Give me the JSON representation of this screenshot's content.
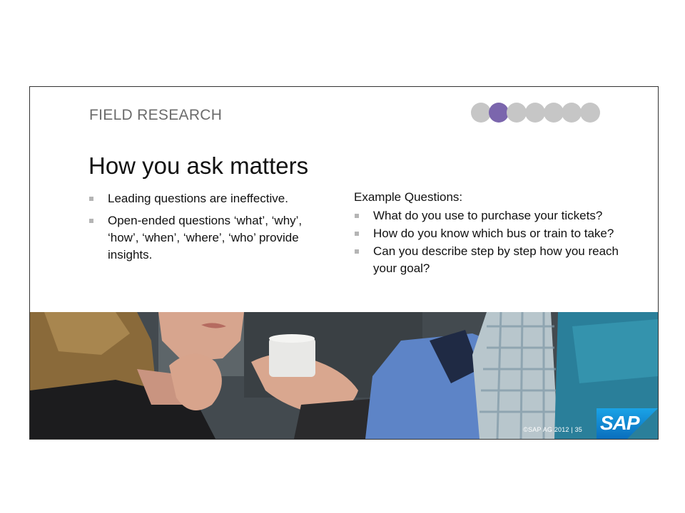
{
  "slide": {
    "section_title": "FIELD RESEARCH",
    "headline": "How you ask matters",
    "progress": {
      "total": 7,
      "active_index": 1,
      "active_color": "#7b66ad",
      "inactive_color": "#c6c6c6"
    },
    "left_bullets": [
      "Leading questions are ineffective.",
      "Open-ended questions ‘what’, ‘why’, ‘how’, ‘when’, ‘where’, ‘who’ provide insights."
    ],
    "right_heading": "Example Questions:",
    "right_bullets": [
      "What do you use to purchase your tickets?",
      "How do you know which bus or train to take?",
      "Can you describe step by step how you reach your goal?"
    ],
    "footer": "©SAP AG 2012 |  35",
    "logo_text": "SAP",
    "brand_color": "#0a6ebd"
  }
}
